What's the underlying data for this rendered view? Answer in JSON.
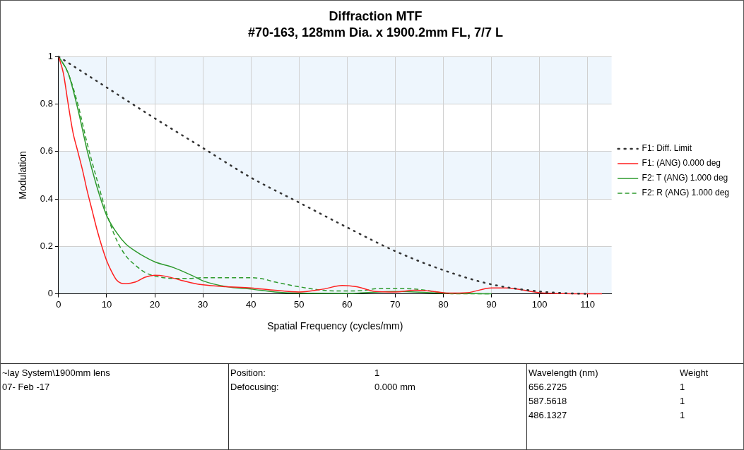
{
  "chart_data": {
    "type": "line",
    "title": "Diffraction MTF",
    "subtitle": "#70-163, 128mm Dia. x 1900.2mm FL, 7/7 L",
    "xlabel": "Spatial Frequency (cycles/mm)",
    "ylabel": "Modulation",
    "xlim": [
      0,
      115
    ],
    "xticks": [
      0,
      10,
      20,
      30,
      40,
      50,
      60,
      70,
      80,
      90,
      100,
      110
    ],
    "ylim": [
      0,
      1
    ],
    "yticks": [
      0,
      0.2,
      0.4,
      0.6,
      0.8,
      1
    ],
    "grid": true,
    "legend": "right",
    "marker": "none",
    "bands": [
      {
        "axis": "y",
        "from": 0,
        "to": 0.2,
        "color": "#eef6fd"
      },
      {
        "axis": "y",
        "from": 0.4,
        "to": 0.6,
        "color": "#eef6fd"
      },
      {
        "axis": "y",
        "from": 0.8,
        "to": 1,
        "color": "#eef6fd"
      }
    ],
    "series": [
      {
        "name": "F1: Diff. Limit",
        "color": "#333333",
        "line_style": "dotted",
        "x": [
          0,
          10,
          20,
          30,
          40,
          50,
          60,
          70,
          80,
          90,
          100,
          105,
          110
        ],
        "values": [
          1,
          0.87,
          0.74,
          0.615,
          0.49,
          0.385,
          0.28,
          0.18,
          0.1,
          0.04,
          0.01,
          0.003,
          0
        ]
      },
      {
        "name": "F1: (ANG) 0.000 deg",
        "color": "#ff2020",
        "line_style": "solid",
        "x": [
          0,
          1,
          2,
          3,
          4,
          5,
          6,
          7,
          8,
          9,
          10,
          11,
          12,
          13,
          14,
          16,
          18,
          20,
          22,
          25,
          28,
          30,
          35,
          40,
          45,
          50,
          55,
          59,
          62,
          66,
          70,
          74,
          78,
          81,
          85,
          90,
          93,
          100,
          105,
          113
        ],
        "values": [
          1,
          0.93,
          0.8,
          0.68,
          0.6,
          0.52,
          0.43,
          0.35,
          0.27,
          0.2,
          0.14,
          0.095,
          0.06,
          0.045,
          0.043,
          0.05,
          0.07,
          0.078,
          0.075,
          0.06,
          0.045,
          0.038,
          0.03,
          0.025,
          0.015,
          0.008,
          0.02,
          0.035,
          0.03,
          0.01,
          0.008,
          0.015,
          0.01,
          0.003,
          0.005,
          0.025,
          0.025,
          0.005,
          0.001,
          0
        ]
      },
      {
        "name": "F2: T (ANG) 1.000 deg",
        "color": "#2e9a2e",
        "line_style": "solid",
        "x": [
          0,
          2,
          4,
          6,
          8,
          10,
          12,
          14,
          16,
          18,
          20,
          24,
          28,
          30,
          35,
          40,
          45,
          50,
          60,
          70,
          80,
          90
        ],
        "values": [
          1,
          0.93,
          0.78,
          0.6,
          0.45,
          0.33,
          0.26,
          0.21,
          0.18,
          0.155,
          0.135,
          0.11,
          0.075,
          0.055,
          0.03,
          0.02,
          0.008,
          0.003,
          0.002,
          0.01,
          0.003,
          0
        ]
      },
      {
        "name": "F2: R (ANG) 1.000 deg",
        "color": "#2e9a2e",
        "line_style": "dashed",
        "x": [
          0,
          2,
          4,
          6,
          8,
          10,
          12,
          14,
          16,
          18,
          20,
          24,
          27,
          30,
          40,
          42,
          45,
          50,
          55,
          60,
          64,
          66,
          70,
          74,
          78,
          80,
          85,
          90
        ],
        "values": [
          1,
          0.93,
          0.8,
          0.63,
          0.48,
          0.34,
          0.23,
          0.16,
          0.12,
          0.09,
          0.075,
          0.065,
          0.065,
          0.068,
          0.068,
          0.065,
          0.05,
          0.03,
          0.015,
          0.012,
          0.015,
          0.022,
          0.022,
          0.02,
          0.01,
          0.003,
          0,
          0
        ]
      }
    ],
    "annotations": [
      "~lay System\\1900mm lens",
      "07- Feb -17",
      "Position:",
      "1",
      "Defocusing:",
      "0.000 mm",
      "Wavelength (nm)",
      "Weight",
      "656.2725",
      "1",
      "587.5618",
      "1",
      "486.1327",
      "1"
    ]
  }
}
